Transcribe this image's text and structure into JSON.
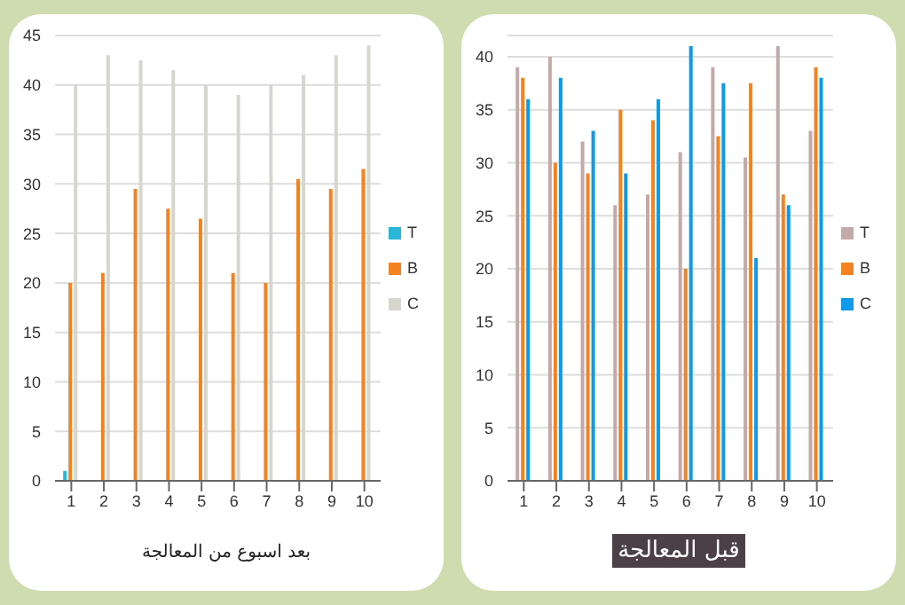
{
  "chart_data": [
    {
      "type": "bar",
      "title": "بعد اسبوع من المعالجة",
      "categories": [
        "1",
        "2",
        "3",
        "4",
        "5",
        "6",
        "7",
        "8",
        "9",
        "10"
      ],
      "series": [
        {
          "name": "T",
          "color": "#29b6d8",
          "values": [
            1,
            0,
            0,
            0,
            0,
            0,
            0,
            0,
            0,
            0
          ]
        },
        {
          "name": "B",
          "color": "#f58220",
          "values": [
            20,
            21,
            29.5,
            27.5,
            26.5,
            21,
            20,
            30.5,
            29.5,
            31.5
          ]
        },
        {
          "name": "C",
          "color": "#d6d6cf",
          "values": [
            40,
            43,
            42.5,
            41.5,
            40,
            39,
            40,
            41,
            43,
            44
          ]
        }
      ],
      "ylim": [
        0,
        45
      ],
      "yticks": [
        0,
        5,
        10,
        15,
        20,
        25,
        30,
        35,
        40,
        45
      ],
      "grid": "y",
      "legend": "right"
    },
    {
      "type": "bar",
      "title": "قبل المعالجة",
      "categories": [
        "1",
        "2",
        "3",
        "4",
        "5",
        "6",
        "7",
        "8",
        "9",
        "10"
      ],
      "series": [
        {
          "name": "T",
          "color": "#c4a9a9",
          "values": [
            39,
            40,
            32,
            26,
            27,
            31,
            39,
            30.5,
            41,
            33
          ]
        },
        {
          "name": "B",
          "color": "#f58220",
          "values": [
            38,
            30,
            29,
            35,
            34,
            20,
            32.5,
            37.5,
            27,
            39
          ]
        },
        {
          "name": "C",
          "color": "#0f9ae8",
          "values": [
            36,
            38,
            33,
            29,
            36,
            41,
            37.5,
            21,
            26,
            38
          ]
        }
      ],
      "ylim": [
        0,
        42
      ],
      "yticks": [
        0,
        5,
        10,
        15,
        20,
        25,
        30,
        35,
        40
      ],
      "grid": "y",
      "legend": "right"
    }
  ]
}
